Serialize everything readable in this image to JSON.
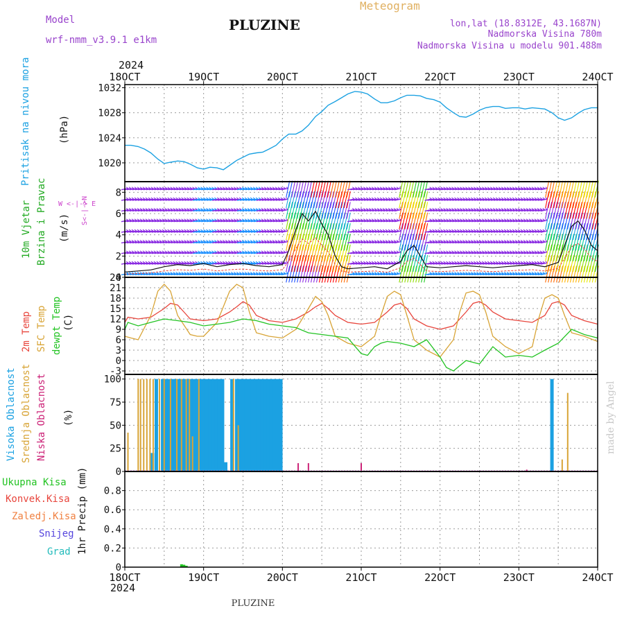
{
  "header": {
    "model_label": "Model",
    "model_name": "wrf-nmm_v3.9.1  e1km",
    "station": "PLUZINE",
    "product": "Meteogram",
    "lonlat": "lon,lat (18.8312E, 43.1687N)",
    "elevation": "Nadmorska Visina 780m",
    "model_elevation": "Nadmorska Visina u modelu 901.488m",
    "year": "2024",
    "footer": "PLUZINE",
    "credit": "made by Angel"
  },
  "colors": {
    "pressure": "#1ba1e2",
    "t2m": "#e8453c",
    "sfc": "#d8a436",
    "dewpt": "#22c322",
    "high_cloud": "#1ba1e2",
    "mid_cloud": "#d8a436",
    "low_cloud": "#cc2277",
    "wind_purple": "#8a2be2",
    "wind_blue": "#1e90ff",
    "wind_label_green": "#22aa22",
    "snow": "#5544dd",
    "hail": "#22bbbb",
    "conv": "#e8453c",
    "frz": "#f08040"
  },
  "chart_data": [
    {
      "type": "line",
      "name": "pressure",
      "x_ticks": [
        "18OCT",
        "19OCT",
        "20OCT",
        "21OCT",
        "22OCT",
        "23OCT",
        "24OCT"
      ],
      "ylabel": "(hPa)",
      "side_label": "Pritisak na nivou mora",
      "ylim": [
        1017,
        1032.5
      ],
      "y_ticks": [
        "1020",
        "1024",
        "1028",
        "1032"
      ],
      "grid": true,
      "series": [
        {
          "x": [
            0,
            0.08,
            0.17,
            0.25,
            0.33,
            0.42,
            0.5,
            0.58,
            0.67,
            0.75,
            0.83,
            0.92,
            1.0,
            1.08,
            1.17,
            1.25,
            1.33,
            1.42,
            1.5,
            1.58,
            1.67,
            1.75,
            1.83,
            1.92,
            2.0,
            2.08,
            2.17,
            2.25,
            2.33,
            2.42,
            2.5,
            2.58,
            2.67,
            2.75,
            2.83,
            2.92,
            3.0,
            3.08,
            3.17,
            3.25,
            3.33,
            3.42,
            3.5,
            3.58,
            3.67,
            3.75,
            3.83,
            3.92,
            4.0,
            4.08,
            4.17,
            4.25,
            4.33,
            4.42,
            4.5,
            4.58,
            4.67,
            4.75,
            4.83,
            4.92,
            5.0,
            5.08,
            5.17,
            5.25,
            5.33,
            5.42,
            5.5,
            5.58,
            5.67,
            5.75,
            5.83,
            5.92,
            6.0
          ],
          "values": [
            1022.8,
            1022.8,
            1022.6,
            1022.2,
            1021.6,
            1020.6,
            1019.9,
            1020.1,
            1020.3,
            1020.2,
            1019.8,
            1019.2,
            1019.0,
            1019.3,
            1019.2,
            1018.9,
            1019.6,
            1020.4,
            1020.9,
            1021.4,
            1021.6,
            1021.7,
            1022.2,
            1022.8,
            1023.8,
            1024.6,
            1024.6,
            1025.1,
            1026.0,
            1027.4,
            1028.2,
            1029.2,
            1029.8,
            1030.4,
            1031.0,
            1031.4,
            1031.3,
            1031.0,
            1030.2,
            1029.6,
            1029.6,
            1029.9,
            1030.4,
            1030.8,
            1030.8,
            1030.7,
            1030.3,
            1030.1,
            1029.7,
            1028.8,
            1028.0,
            1027.4,
            1027.3,
            1027.8,
            1028.4,
            1028.8,
            1029.0,
            1029.0,
            1028.7,
            1028.8,
            1028.8,
            1028.6,
            1028.8,
            1028.7,
            1028.6,
            1028.0,
            1027.2,
            1026.8,
            1027.2,
            1027.9,
            1028.5,
            1028.8,
            1028.8
          ]
        }
      ]
    },
    {
      "type": "line",
      "name": "wind",
      "ylabel": "(m/s)",
      "side_label": [
        "10m Vjetar",
        "Brzina i Pravac"
      ],
      "compass_label": [
        "W  <-|->  E",
        "S<-|->N"
      ],
      "ylim": [
        0,
        9
      ],
      "y_ticks": [
        "0",
        "2",
        "4",
        "6",
        "8"
      ],
      "grid": true,
      "series": [
        {
          "name": "speed",
          "x": [
            0,
            0.17,
            0.33,
            0.5,
            0.67,
            0.83,
            1.0,
            1.17,
            1.33,
            1.5,
            1.67,
            1.83,
            2.0,
            2.08,
            2.17,
            2.25,
            2.33,
            2.42,
            2.5,
            2.58,
            2.67,
            2.75,
            2.83,
            3.0,
            3.17,
            3.33,
            3.5,
            3.58,
            3.67,
            3.75,
            3.83,
            4.0,
            4.17,
            4.33,
            4.5,
            4.67,
            4.83,
            5.0,
            5.17,
            5.33,
            5.5,
            5.58,
            5.67,
            5.75,
            5.83,
            5.92,
            6.0
          ],
          "values": [
            0.5,
            0.6,
            0.7,
            1.0,
            1.2,
            1.1,
            1.3,
            1.0,
            1.2,
            1.3,
            1.1,
            1.0,
            1.2,
            2.5,
            4.5,
            6.0,
            5.3,
            6.2,
            5.0,
            4.0,
            2.0,
            1.0,
            0.8,
            0.9,
            1.0,
            0.8,
            1.5,
            2.5,
            3.0,
            2.0,
            1.0,
            0.9,
            1.0,
            1.1,
            1.0,
            0.9,
            1.0,
            1.1,
            1.2,
            1.0,
            1.4,
            3.0,
            4.8,
            5.3,
            4.5,
            3.0,
            2.5
          ]
        }
      ]
    },
    {
      "type": "line",
      "name": "temperature",
      "ylabel": "(C)",
      "side_label": [
        "2m Temp",
        "SFC Temp",
        "dewpt Temp"
      ],
      "ylim": [
        -4,
        24
      ],
      "y_ticks": [
        "-3",
        "0",
        "3",
        "6",
        "9",
        "12",
        "15",
        "18",
        "21",
        "24"
      ],
      "grid": true,
      "series": [
        {
          "name": "2m Temp",
          "x": [
            0,
            0.04,
            0.17,
            0.33,
            0.5,
            0.58,
            0.67,
            0.75,
            0.83,
            1.0,
            1.17,
            1.33,
            1.42,
            1.5,
            1.58,
            1.67,
            1.83,
            2.0,
            2.17,
            2.33,
            2.42,
            2.5,
            2.58,
            2.67,
            2.83,
            3.0,
            3.17,
            3.33,
            3.42,
            3.5,
            3.58,
            3.67,
            3.83,
            4.0,
            4.17,
            4.33,
            4.42,
            4.5,
            4.58,
            4.67,
            4.83,
            5.0,
            5.17,
            5.33,
            5.42,
            5.5,
            5.58,
            5.67,
            5.83,
            6.0
          ],
          "values": [
            11,
            12.5,
            12,
            12.5,
            15,
            16.5,
            16,
            14,
            12,
            11.5,
            12,
            14,
            15.5,
            17,
            16,
            13,
            11.5,
            11,
            12,
            14,
            15.5,
            16.5,
            15,
            13,
            11,
            10.5,
            11,
            14,
            16,
            16.5,
            15,
            12,
            10,
            9,
            10,
            14,
            16.5,
            17,
            16,
            14,
            12,
            11.5,
            11,
            13,
            16.5,
            17,
            16,
            13,
            11.5,
            10.5
          ]
        },
        {
          "name": "SFC Temp",
          "x": [
            0,
            0.08,
            0.17,
            0.33,
            0.42,
            0.5,
            0.58,
            0.67,
            0.83,
            0.92,
            1.0,
            1.17,
            1.33,
            1.42,
            1.5,
            1.58,
            1.67,
            1.83,
            2.0,
            2.17,
            2.33,
            2.42,
            2.5,
            2.58,
            2.67,
            2.83,
            3.0,
            3.17,
            3.25,
            3.33,
            3.42,
            3.5,
            3.58,
            3.67,
            3.83,
            4.0,
            4.17,
            4.25,
            4.33,
            4.42,
            4.5,
            4.58,
            4.67,
            4.83,
            5.0,
            5.17,
            5.25,
            5.33,
            5.42,
            5.5,
            5.58,
            5.67,
            5.83,
            6.0
          ],
          "values": [
            7,
            6.5,
            6,
            13,
            20,
            22,
            20,
            13,
            7.5,
            7,
            7,
            11,
            20,
            22,
            21,
            14,
            8,
            7,
            6.5,
            9,
            15,
            18.5,
            17,
            13,
            7,
            5,
            4,
            7,
            13,
            18.5,
            20,
            19,
            13,
            6,
            3,
            1,
            6,
            14,
            19.5,
            20,
            19,
            14,
            7,
            4,
            2,
            4,
            12,
            18,
            19,
            18,
            13,
            8,
            7,
            5.5
          ]
        },
        {
          "name": "dewpt Temp",
          "x": [
            0,
            0.04,
            0.17,
            0.33,
            0.5,
            0.67,
            0.83,
            1.0,
            1.17,
            1.33,
            1.5,
            1.67,
            1.83,
            2.0,
            2.17,
            2.33,
            2.5,
            2.67,
            2.83,
            3.0,
            3.08,
            3.17,
            3.25,
            3.33,
            3.5,
            3.67,
            3.83,
            4.0,
            4.08,
            4.17,
            4.33,
            4.5,
            4.67,
            4.83,
            5.0,
            5.17,
            5.33,
            5.5,
            5.67,
            5.83,
            6.0
          ],
          "values": [
            9,
            11,
            10,
            11,
            12,
            11.5,
            11,
            10,
            10.5,
            11,
            12,
            11.5,
            10.5,
            10,
            9.5,
            8,
            7.5,
            7,
            6.5,
            2,
            1.5,
            4,
            5,
            5.5,
            5,
            4,
            6,
            1,
            -2,
            -3,
            0,
            -1,
            4,
            1,
            1.5,
            1,
            3,
            5,
            9,
            7.5,
            6.5
          ]
        }
      ]
    },
    {
      "type": "bar",
      "name": "clouds",
      "ylabel": "(%)",
      "side_label": [
        "Visoka Oblacnost",
        "Srednja Oblacnost",
        "Niska Oblacnost"
      ],
      "ylim": [
        0,
        105
      ],
      "y_ticks": [
        "0",
        "25",
        "50",
        "75",
        "100"
      ],
      "grid": true,
      "series": [
        {
          "name": "Visoka Oblacnost",
          "x": [
            0.35,
            0.4,
            0.48,
            0.52,
            0.56,
            0.6,
            0.64,
            0.68,
            0.72,
            0.76,
            0.8,
            0.84,
            0.88,
            0.92,
            0.96,
            1.0,
            1.04,
            1.08,
            1.12,
            1.16,
            1.2,
            1.24,
            1.28,
            1.36,
            1.42,
            1.46,
            1.5,
            1.54,
            1.58,
            1.62,
            1.66,
            1.7,
            1.74,
            1.78,
            1.82,
            1.86,
            1.9,
            1.94,
            1.98,
            5.42
          ],
          "values": [
            20,
            100,
            100,
            100,
            100,
            100,
            100,
            100,
            100,
            100,
            100,
            100,
            100,
            100,
            100,
            100,
            100,
            100,
            100,
            100,
            100,
            100,
            10,
            100,
            100,
            100,
            100,
            100,
            100,
            100,
            100,
            100,
            100,
            100,
            100,
            100,
            100,
            100,
            100,
            100
          ]
        },
        {
          "name": "Srednja Oblacnost",
          "x": [
            0.04,
            0.17,
            0.2,
            0.24,
            0.28,
            0.32,
            0.36,
            0.44,
            0.5,
            0.58,
            0.66,
            0.72,
            0.78,
            0.82,
            0.86,
            0.94,
            1.38,
            1.44,
            5.55,
            5.62
          ],
          "values": [
            42,
            100,
            100,
            100,
            100,
            100,
            100,
            100,
            100,
            100,
            100,
            100,
            100,
            100,
            38,
            100,
            100,
            50,
            13,
            85
          ]
        },
        {
          "name": "Niska Oblacnost",
          "x": [
            2.2,
            2.33,
            3.0,
            5.1
          ],
          "values": [
            9,
            9,
            9,
            2
          ]
        }
      ]
    },
    {
      "type": "bar",
      "name": "precip",
      "ylabel": "1hr Precip (mm)",
      "side_label": [
        "Ukupna Kisa",
        "Konvek.Kisa",
        "Zaledj.Kisa",
        "Snijeg",
        "Grad"
      ],
      "ylim": [
        0,
        1.0
      ],
      "y_ticks": [
        "0",
        "0.2",
        "0.4",
        "0.6",
        "0.8"
      ],
      "grid": true,
      "series": [
        {
          "name": "Ukupna Kisa",
          "x": [
            0.72,
            0.75,
            0.78
          ],
          "values": [
            0.03,
            0.025,
            0.015
          ]
        }
      ]
    }
  ]
}
